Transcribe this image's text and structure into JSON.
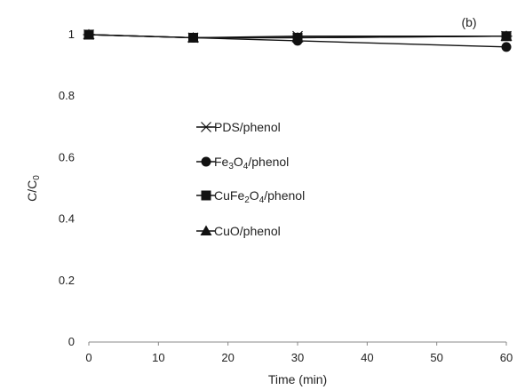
{
  "chart_data": {
    "type": "line",
    "title": "",
    "panel_label": "(b)",
    "xlabel": "Time (min)",
    "ylabel": "C/C",
    "ylabel_sub": "0",
    "xlim": [
      0,
      60
    ],
    "ylim": [
      0,
      1
    ],
    "x_ticks": [
      0,
      10,
      20,
      30,
      40,
      50,
      60
    ],
    "y_ticks": [
      0,
      0.2,
      0.4,
      0.6,
      0.8,
      1
    ],
    "y_tick_labels": [
      "0",
      "0.2",
      "0.4",
      "0.6",
      "0.8",
      "1"
    ],
    "grid": false,
    "legend_position": "center-left",
    "x": [
      0,
      15,
      30,
      60
    ],
    "series": [
      {
        "name": "PDS/phenol",
        "marker": "asterisk",
        "legend_parts": [
          {
            "t": "PDS/phenol"
          }
        ],
        "values": [
          1.0,
          0.99,
          0.995,
          0.995
        ]
      },
      {
        "name": "Fe₃O₄/phenol",
        "marker": "circle",
        "legend_parts": [
          {
            "t": "Fe"
          },
          {
            "t": "3",
            "sub": true
          },
          {
            "t": "O"
          },
          {
            "t": "4",
            "sub": true
          },
          {
            "t": "/phenol"
          }
        ],
        "values": [
          1.0,
          0.99,
          0.98,
          0.96
        ]
      },
      {
        "name": "CuFe₂O₄/phenol",
        "marker": "square",
        "legend_parts": [
          {
            "t": "CuFe"
          },
          {
            "t": "2",
            "sub": true
          },
          {
            "t": "O"
          },
          {
            "t": "4",
            "sub": true
          },
          {
            "t": "/phenol"
          }
        ],
        "values": [
          1.0,
          0.99,
          0.99,
          0.995
        ]
      },
      {
        "name": "CuO/phenol",
        "marker": "triangle",
        "legend_parts": [
          {
            "t": "CuO/phenol"
          }
        ],
        "values": [
          1.0,
          0.99,
          0.99,
          0.995
        ]
      }
    ],
    "colors": {
      "axis": "#888888",
      "series": "#111111",
      "text": "#222222"
    }
  }
}
